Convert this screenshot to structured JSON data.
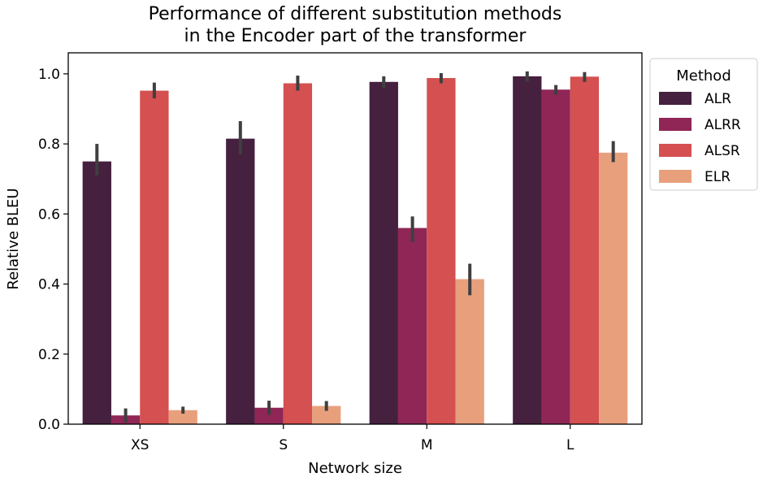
{
  "chart_data": {
    "type": "bar",
    "title": [
      "Performance of different substitution methods",
      "in the Encoder part of the transformer"
    ],
    "xlabel": "Network size",
    "ylabel": "Relative BLEU",
    "categories": [
      "XS",
      "S",
      "M",
      "L"
    ],
    "ylim": [
      0,
      1.06
    ],
    "yticks": [
      0.0,
      0.2,
      0.4,
      0.6,
      0.8,
      1.0
    ],
    "ytick_labels": [
      "0.0",
      "0.2",
      "0.4",
      "0.6",
      "0.8",
      "1.0"
    ],
    "legend_title": "Method",
    "legend_position": "outside-right-top",
    "series": [
      {
        "name": "ALR",
        "color": "#45203f",
        "values": [
          0.75,
          0.815,
          0.977,
          0.993
        ],
        "error": [
          [
            0.71,
            0.8
          ],
          [
            0.77,
            0.865
          ],
          [
            0.96,
            0.993
          ],
          [
            0.978,
            1.007
          ]
        ]
      },
      {
        "name": "ALRR",
        "color": "#8f2656",
        "values": [
          0.025,
          0.047,
          0.56,
          0.955
        ],
        "error": [
          [
            0.005,
            0.045
          ],
          [
            0.027,
            0.067
          ],
          [
            0.52,
            0.593
          ],
          [
            0.94,
            0.968
          ]
        ]
      },
      {
        "name": "ALSR",
        "color": "#d55050",
        "values": [
          0.952,
          0.973,
          0.988,
          0.992
        ],
        "error": [
          [
            0.93,
            0.975
          ],
          [
            0.952,
            0.995
          ],
          [
            0.973,
            1.002
          ],
          [
            0.977,
            1.005
          ]
        ]
      },
      {
        "name": "ELR",
        "color": "#e8a07c",
        "values": [
          0.04,
          0.052,
          0.414,
          0.775
        ],
        "error": [
          [
            0.03,
            0.05
          ],
          [
            0.038,
            0.066
          ],
          [
            0.368,
            0.458
          ],
          [
            0.748,
            0.808
          ]
        ]
      }
    ]
  }
}
